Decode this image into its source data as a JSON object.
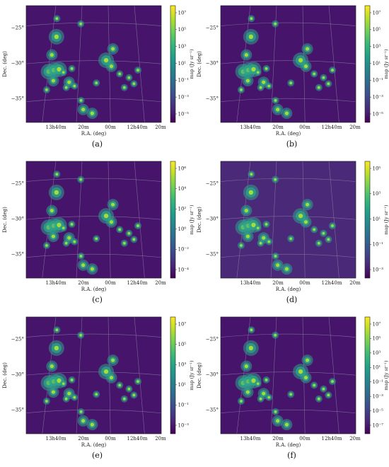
{
  "chart_data": [
    {
      "type": "heatmap",
      "caption": "(a)",
      "xlabel": "R.A. (deg)",
      "ylabel": "Dec. (deg)",
      "x_ticks": [
        "13h40m",
        "20m",
        "00m",
        "12h40m",
        "20m"
      ],
      "y_ticks": [
        "−25°",
        "−30°",
        "−35°"
      ],
      "colorbar_label": "map (Jy sr⁻¹)",
      "colorbar_ticks": [
        "10⁷",
        "10⁵",
        "10³",
        "10¹",
        "10⁻¹",
        "10⁻³",
        "10⁻⁵"
      ],
      "background": "#46156b",
      "sources": [
        {
          "ra": 204.1,
          "dec": -26.9,
          "kind": "large"
        },
        {
          "ra": 204.6,
          "dec": -29.3,
          "kind": "medium"
        },
        {
          "ra": 205.0,
          "dec": -31.5,
          "kind": "large"
        },
        {
          "ra": 204.5,
          "dec": -31.3,
          "kind": "large"
        },
        {
          "ra": 204.0,
          "dec": -31.2,
          "kind": "large"
        },
        {
          "ra": 204.6,
          "dec": -32.7,
          "kind": "medium"
        },
        {
          "ra": 203.6,
          "dec": -31.6,
          "kind": "small"
        },
        {
          "ra": 203.1,
          "dec": -32.9,
          "kind": "medium"
        },
        {
          "ra": 202.8,
          "dec": -31.1,
          "kind": "small"
        },
        {
          "ra": 202.6,
          "dec": -33.4,
          "kind": "small"
        },
        {
          "ra": 203.4,
          "dec": -33.6,
          "kind": "small"
        },
        {
          "ra": 202.0,
          "dec": -35.3,
          "kind": "small"
        },
        {
          "ra": 201.8,
          "dec": -36.5,
          "kind": "medium"
        },
        {
          "ra": 200.9,
          "dec": -37.0,
          "kind": "medium"
        },
        {
          "ra": 200.5,
          "dec": -33.0,
          "kind": "small"
        },
        {
          "ra": 199.6,
          "dec": -30.0,
          "kind": "large"
        },
        {
          "ra": 199.1,
          "dec": -30.8,
          "kind": "medium"
        },
        {
          "ra": 199.0,
          "dec": -28.5,
          "kind": "medium"
        },
        {
          "ra": 198.3,
          "dec": -31.8,
          "kind": "small"
        },
        {
          "ra": 197.4,
          "dec": -32.3,
          "kind": "small"
        },
        {
          "ra": 197.8,
          "dec": -33.6,
          "kind": "small"
        },
        {
          "ra": 196.6,
          "dec": -31.3,
          "kind": "small"
        },
        {
          "ra": 196.9,
          "dec": -33.1,
          "kind": "small"
        },
        {
          "ra": 201.9,
          "dec": -25.2,
          "kind": "small"
        },
        {
          "ra": 204.0,
          "dec": -24.5,
          "kind": "small"
        },
        {
          "ra": 205.3,
          "dec": -33.9,
          "kind": "small"
        }
      ]
    },
    {
      "type": "heatmap",
      "caption": "(b)",
      "xlabel": "R.A. (deg)",
      "ylabel": "Dec. (deg)",
      "x_ticks": [
        "13h40m",
        "20m",
        "00m",
        "12h40m",
        "20m"
      ],
      "y_ticks": [
        "−25°",
        "−30°",
        "−35°"
      ],
      "colorbar_label": "map (Jy sr⁻¹)",
      "colorbar_ticks": [
        "10⁷",
        "10⁵",
        "10³",
        "10¹",
        "10⁻¹",
        "10⁻³",
        "10⁻⁵"
      ],
      "background": "#46156b",
      "sources": [
        {
          "ra": 204.1,
          "dec": -26.9,
          "kind": "large"
        },
        {
          "ra": 204.6,
          "dec": -29.3,
          "kind": "medium"
        },
        {
          "ra": 205.0,
          "dec": -31.5,
          "kind": "large"
        },
        {
          "ra": 204.5,
          "dec": -31.3,
          "kind": "large"
        },
        {
          "ra": 204.0,
          "dec": -31.2,
          "kind": "large"
        },
        {
          "ra": 204.6,
          "dec": -32.7,
          "kind": "medium"
        },
        {
          "ra": 203.6,
          "dec": -31.6,
          "kind": "small"
        },
        {
          "ra": 203.1,
          "dec": -32.9,
          "kind": "medium"
        },
        {
          "ra": 202.8,
          "dec": -31.1,
          "kind": "small"
        },
        {
          "ra": 202.6,
          "dec": -33.4,
          "kind": "small"
        },
        {
          "ra": 203.4,
          "dec": -33.6,
          "kind": "small"
        },
        {
          "ra": 202.0,
          "dec": -35.3,
          "kind": "small"
        },
        {
          "ra": 201.8,
          "dec": -36.5,
          "kind": "medium"
        },
        {
          "ra": 200.9,
          "dec": -37.0,
          "kind": "medium"
        },
        {
          "ra": 200.5,
          "dec": -33.0,
          "kind": "small"
        },
        {
          "ra": 199.6,
          "dec": -30.0,
          "kind": "large"
        },
        {
          "ra": 199.1,
          "dec": -30.8,
          "kind": "medium"
        },
        {
          "ra": 199.0,
          "dec": -28.5,
          "kind": "medium"
        },
        {
          "ra": 198.3,
          "dec": -31.8,
          "kind": "small"
        },
        {
          "ra": 197.4,
          "dec": -32.3,
          "kind": "small"
        },
        {
          "ra": 197.8,
          "dec": -33.6,
          "kind": "small"
        },
        {
          "ra": 196.6,
          "dec": -31.3,
          "kind": "small"
        },
        {
          "ra": 196.9,
          "dec": -33.1,
          "kind": "small"
        },
        {
          "ra": 201.9,
          "dec": -25.2,
          "kind": "small"
        },
        {
          "ra": 204.0,
          "dec": -24.5,
          "kind": "small"
        },
        {
          "ra": 205.3,
          "dec": -33.9,
          "kind": "small"
        }
      ]
    },
    {
      "type": "heatmap",
      "caption": "(c)",
      "xlabel": "R.A. (deg)",
      "ylabel": "Dec. (deg)",
      "x_ticks": [
        "13h40m",
        "20m",
        "00m",
        "12h40m",
        "20m"
      ],
      "y_ticks": [
        "−25°",
        "−30°",
        "−35°"
      ],
      "colorbar_label": "map (Jy sr⁻¹)",
      "colorbar_ticks": [
        "10⁶",
        "10⁴",
        "10²",
        "10⁰",
        "10⁻²",
        "10⁻⁴"
      ],
      "background": "#46156b",
      "sources": [
        {
          "ra": 204.1,
          "dec": -26.9,
          "kind": "large"
        },
        {
          "ra": 204.6,
          "dec": -29.3,
          "kind": "medium"
        },
        {
          "ra": 205.0,
          "dec": -31.5,
          "kind": "large"
        },
        {
          "ra": 204.5,
          "dec": -31.3,
          "kind": "large"
        },
        {
          "ra": 204.0,
          "dec": -31.2,
          "kind": "large"
        },
        {
          "ra": 204.6,
          "dec": -32.7,
          "kind": "medium"
        },
        {
          "ra": 203.6,
          "dec": -31.6,
          "kind": "small"
        },
        {
          "ra": 203.1,
          "dec": -32.9,
          "kind": "medium"
        },
        {
          "ra": 202.8,
          "dec": -31.1,
          "kind": "small"
        },
        {
          "ra": 202.6,
          "dec": -33.4,
          "kind": "small"
        },
        {
          "ra": 203.4,
          "dec": -33.6,
          "kind": "small"
        },
        {
          "ra": 202.0,
          "dec": -35.3,
          "kind": "small"
        },
        {
          "ra": 201.8,
          "dec": -36.5,
          "kind": "medium"
        },
        {
          "ra": 200.9,
          "dec": -37.0,
          "kind": "medium"
        },
        {
          "ra": 200.5,
          "dec": -33.0,
          "kind": "small"
        },
        {
          "ra": 199.6,
          "dec": -30.0,
          "kind": "large"
        },
        {
          "ra": 199.1,
          "dec": -30.8,
          "kind": "medium"
        },
        {
          "ra": 199.0,
          "dec": -28.5,
          "kind": "medium"
        },
        {
          "ra": 198.3,
          "dec": -31.8,
          "kind": "small"
        },
        {
          "ra": 197.4,
          "dec": -32.3,
          "kind": "small"
        },
        {
          "ra": 197.8,
          "dec": -33.6,
          "kind": "small"
        },
        {
          "ra": 196.6,
          "dec": -31.3,
          "kind": "small"
        },
        {
          "ra": 196.9,
          "dec": -33.1,
          "kind": "small"
        },
        {
          "ra": 201.9,
          "dec": -25.2,
          "kind": "small"
        },
        {
          "ra": 204.0,
          "dec": -24.5,
          "kind": "small"
        },
        {
          "ra": 205.3,
          "dec": -33.9,
          "kind": "small"
        }
      ]
    },
    {
      "type": "heatmap",
      "caption": "(d)",
      "xlabel": "R.A. (deg)",
      "ylabel": "Dec. (deg)",
      "x_ticks": [
        "13h40m",
        "20m",
        "00m",
        "12h40m",
        "20m"
      ],
      "y_ticks": [
        "−25°",
        "−30°",
        "−35°"
      ],
      "colorbar_label": "map (Jy sr⁻¹)",
      "colorbar_ticks": [
        "10⁵",
        "10³",
        "10¹",
        "10⁻¹",
        "10⁻³"
      ],
      "background": "#4a2a78",
      "sources": [
        {
          "ra": 204.1,
          "dec": -26.9,
          "kind": "large"
        },
        {
          "ra": 204.6,
          "dec": -29.3,
          "kind": "medium"
        },
        {
          "ra": 205.0,
          "dec": -31.5,
          "kind": "large"
        },
        {
          "ra": 204.5,
          "dec": -31.3,
          "kind": "large"
        },
        {
          "ra": 204.0,
          "dec": -31.2,
          "kind": "large"
        },
        {
          "ra": 204.6,
          "dec": -32.7,
          "kind": "medium"
        },
        {
          "ra": 203.6,
          "dec": -31.6,
          "kind": "small"
        },
        {
          "ra": 203.1,
          "dec": -32.9,
          "kind": "medium"
        },
        {
          "ra": 202.8,
          "dec": -31.1,
          "kind": "small"
        },
        {
          "ra": 202.6,
          "dec": -33.4,
          "kind": "small"
        },
        {
          "ra": 203.4,
          "dec": -33.6,
          "kind": "small"
        },
        {
          "ra": 202.0,
          "dec": -35.3,
          "kind": "small"
        },
        {
          "ra": 201.8,
          "dec": -36.5,
          "kind": "medium"
        },
        {
          "ra": 200.9,
          "dec": -37.0,
          "kind": "medium"
        },
        {
          "ra": 200.5,
          "dec": -33.0,
          "kind": "small"
        },
        {
          "ra": 199.6,
          "dec": -30.0,
          "kind": "large"
        },
        {
          "ra": 199.1,
          "dec": -30.8,
          "kind": "medium"
        },
        {
          "ra": 199.0,
          "dec": -28.5,
          "kind": "medium"
        },
        {
          "ra": 198.3,
          "dec": -31.8,
          "kind": "small"
        },
        {
          "ra": 197.4,
          "dec": -32.3,
          "kind": "small"
        },
        {
          "ra": 197.8,
          "dec": -33.6,
          "kind": "small"
        },
        {
          "ra": 196.6,
          "dec": -31.3,
          "kind": "small"
        },
        {
          "ra": 196.9,
          "dec": -33.1,
          "kind": "small"
        },
        {
          "ra": 201.9,
          "dec": -25.2,
          "kind": "small"
        },
        {
          "ra": 204.0,
          "dec": -24.5,
          "kind": "small"
        },
        {
          "ra": 205.3,
          "dec": -33.9,
          "kind": "small"
        }
      ]
    },
    {
      "type": "heatmap",
      "caption": "(e)",
      "xlabel": "R.A. (deg)",
      "ylabel": "Dec. (deg)",
      "x_ticks": [
        "13h40m",
        "20m",
        "00m",
        "12h40m",
        "20m"
      ],
      "y_ticks": [
        "−25°",
        "−30°",
        "−35°"
      ],
      "colorbar_label": "map (Jy sr⁻¹)",
      "colorbar_ticks": [
        "10⁷",
        "10⁵",
        "10³",
        "10¹",
        "10⁻¹",
        "10⁻³"
      ],
      "background": "#46156b",
      "sources": [
        {
          "ra": 204.1,
          "dec": -26.9,
          "kind": "large"
        },
        {
          "ra": 204.6,
          "dec": -29.3,
          "kind": "medium"
        },
        {
          "ra": 205.0,
          "dec": -31.5,
          "kind": "large"
        },
        {
          "ra": 204.5,
          "dec": -31.3,
          "kind": "large"
        },
        {
          "ra": 204.0,
          "dec": -31.2,
          "kind": "large"
        },
        {
          "ra": 204.6,
          "dec": -32.7,
          "kind": "medium"
        },
        {
          "ra": 203.6,
          "dec": -31.6,
          "kind": "small"
        },
        {
          "ra": 203.1,
          "dec": -32.9,
          "kind": "medium"
        },
        {
          "ra": 202.8,
          "dec": -31.1,
          "kind": "small"
        },
        {
          "ra": 202.6,
          "dec": -33.4,
          "kind": "small"
        },
        {
          "ra": 203.4,
          "dec": -33.6,
          "kind": "small"
        },
        {
          "ra": 202.0,
          "dec": -35.3,
          "kind": "small"
        },
        {
          "ra": 201.8,
          "dec": -36.5,
          "kind": "medium"
        },
        {
          "ra": 200.9,
          "dec": -37.0,
          "kind": "medium"
        },
        {
          "ra": 200.5,
          "dec": -33.0,
          "kind": "small"
        },
        {
          "ra": 199.6,
          "dec": -30.0,
          "kind": "large"
        },
        {
          "ra": 199.1,
          "dec": -30.8,
          "kind": "medium"
        },
        {
          "ra": 199.0,
          "dec": -28.5,
          "kind": "medium"
        },
        {
          "ra": 198.3,
          "dec": -31.8,
          "kind": "small"
        },
        {
          "ra": 197.4,
          "dec": -32.3,
          "kind": "small"
        },
        {
          "ra": 197.8,
          "dec": -33.6,
          "kind": "small"
        },
        {
          "ra": 196.6,
          "dec": -31.3,
          "kind": "small"
        },
        {
          "ra": 196.9,
          "dec": -33.1,
          "kind": "small"
        },
        {
          "ra": 201.9,
          "dec": -25.2,
          "kind": "small"
        },
        {
          "ra": 204.0,
          "dec": -24.5,
          "kind": "small"
        },
        {
          "ra": 205.3,
          "dec": -33.9,
          "kind": "small"
        }
      ]
    },
    {
      "type": "heatmap",
      "caption": "(f)",
      "xlabel": "R.A. (deg)",
      "ylabel": "Dec. (deg)",
      "x_ticks": [
        "13h40m",
        "20m",
        "00m",
        "12h40m",
        "20m"
      ],
      "y_ticks": [
        "−25°",
        "−30°",
        "−35°"
      ],
      "colorbar_label": "map (Jy sr⁻¹)",
      "colorbar_ticks": [
        "10⁷",
        "10⁵",
        "10³",
        "10¹",
        "10⁻¹",
        "10⁻³",
        "10⁻⁵",
        "10⁻⁷"
      ],
      "background": "#46156b",
      "sources": [
        {
          "ra": 204.1,
          "dec": -26.9,
          "kind": "large"
        },
        {
          "ra": 204.6,
          "dec": -29.3,
          "kind": "medium"
        },
        {
          "ra": 205.0,
          "dec": -31.5,
          "kind": "large"
        },
        {
          "ra": 204.5,
          "dec": -31.3,
          "kind": "large"
        },
        {
          "ra": 204.0,
          "dec": -31.2,
          "kind": "large"
        },
        {
          "ra": 204.6,
          "dec": -32.7,
          "kind": "medium"
        },
        {
          "ra": 203.6,
          "dec": -31.6,
          "kind": "small"
        },
        {
          "ra": 203.1,
          "dec": -32.9,
          "kind": "medium"
        },
        {
          "ra": 202.8,
          "dec": -31.1,
          "kind": "small"
        },
        {
          "ra": 202.6,
          "dec": -33.4,
          "kind": "small"
        },
        {
          "ra": 203.4,
          "dec": -33.6,
          "kind": "small"
        },
        {
          "ra": 202.0,
          "dec": -35.3,
          "kind": "small"
        },
        {
          "ra": 201.8,
          "dec": -36.5,
          "kind": "medium"
        },
        {
          "ra": 200.9,
          "dec": -37.0,
          "kind": "medium"
        },
        {
          "ra": 200.5,
          "dec": -33.0,
          "kind": "small"
        },
        {
          "ra": 199.6,
          "dec": -30.0,
          "kind": "large"
        },
        {
          "ra": 199.1,
          "dec": -30.8,
          "kind": "medium"
        },
        {
          "ra": 199.0,
          "dec": -28.5,
          "kind": "medium"
        },
        {
          "ra": 198.3,
          "dec": -31.8,
          "kind": "small"
        },
        {
          "ra": 197.4,
          "dec": -32.3,
          "kind": "small"
        },
        {
          "ra": 197.8,
          "dec": -33.6,
          "kind": "small"
        },
        {
          "ra": 196.6,
          "dec": -31.3,
          "kind": "small"
        },
        {
          "ra": 196.9,
          "dec": -33.1,
          "kind": "small"
        },
        {
          "ra": 201.9,
          "dec": -25.2,
          "kind": "small"
        },
        {
          "ra": 204.0,
          "dec": -24.5,
          "kind": "small"
        },
        {
          "ra": 205.3,
          "dec": -33.9,
          "kind": "small"
        }
      ]
    }
  ]
}
